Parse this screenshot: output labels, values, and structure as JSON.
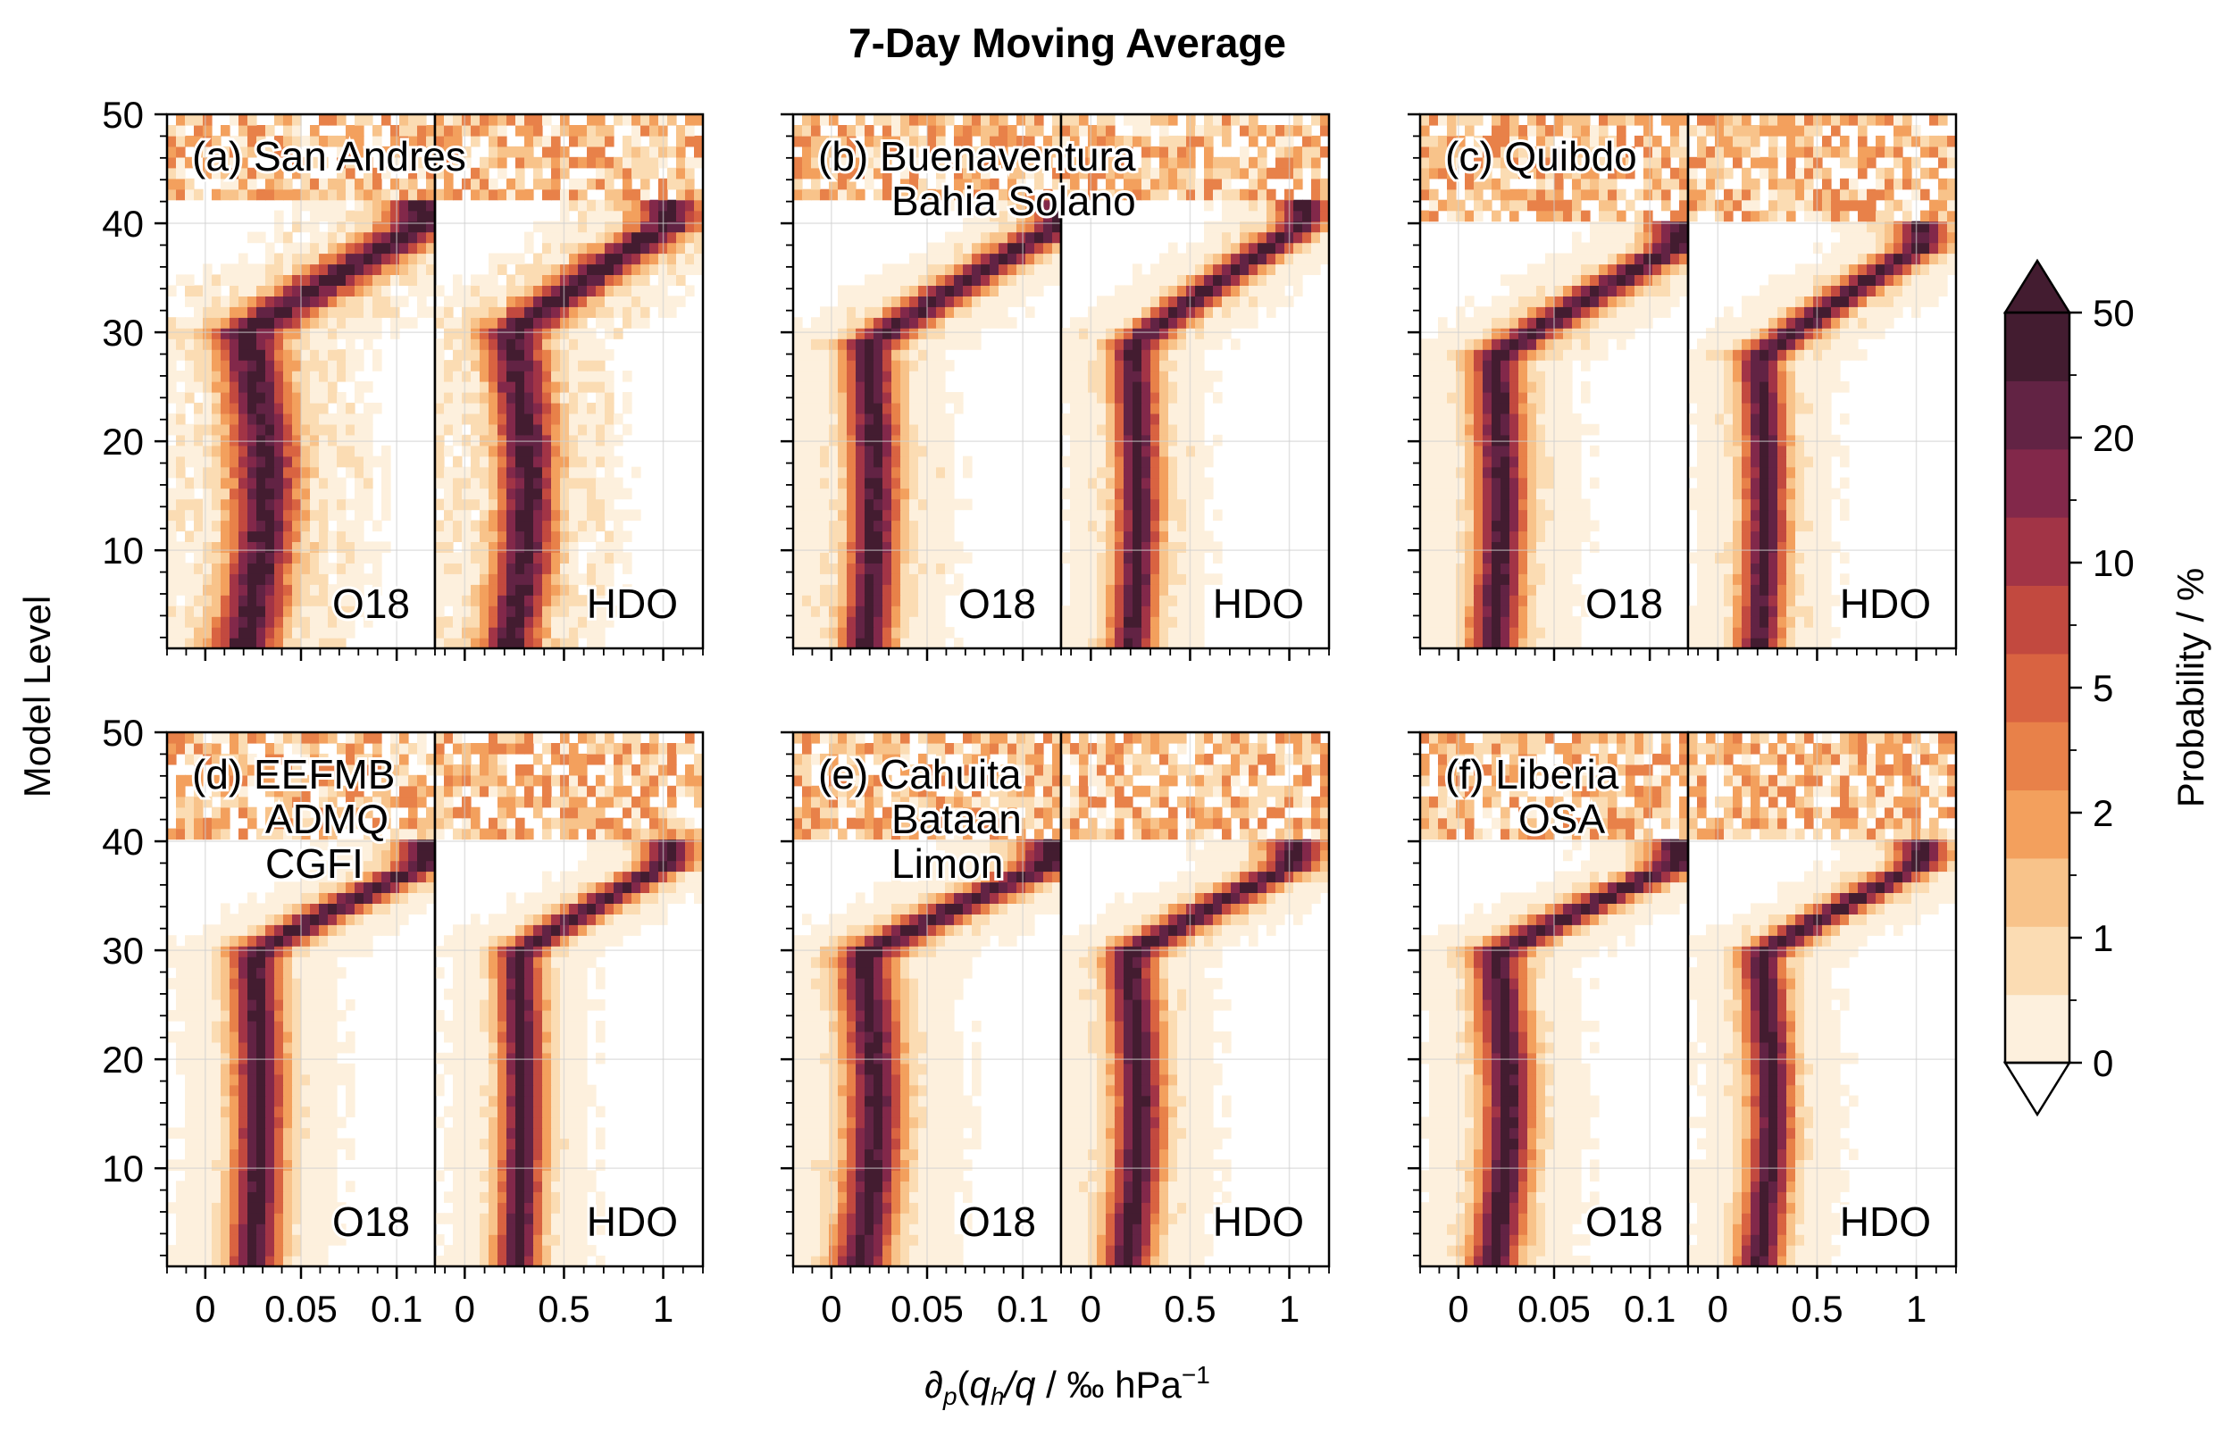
{
  "figure": {
    "title": "7-Day Moving Average",
    "ylabel": "Model Level",
    "xlabel_parts": {
      "d": "∂",
      "p": "p",
      "open": "(",
      "q": "q",
      "h": "h",
      "mid": "/q) / ‰ hPa",
      "exp": "−1"
    }
  },
  "colors": {
    "bins": [
      "#fdf0dd",
      "#fbdcb3",
      "#f8c38a",
      "#f3a05d",
      "#e88149",
      "#d96341",
      "#c2493f",
      "#a23446",
      "#82284a",
      "#622344",
      "#431c30"
    ],
    "outline": "#000000",
    "grid": "#cfcfcf"
  },
  "chart_data": {
    "type": "heatmap",
    "colorbar": {
      "label": "Probability / %",
      "tick_labels": [
        "0",
        "1",
        "2",
        "5",
        "10",
        "20",
        "50"
      ],
      "extend": "both"
    },
    "y_axis": {
      "label": "Model Level",
      "ylim": [
        1,
        50
      ],
      "ticks": [
        10,
        20,
        30,
        40,
        50
      ]
    },
    "x_axes": {
      "O18": {
        "label": "O18",
        "xlim": [
          -0.02,
          0.12
        ],
        "ticks": [
          0,
          0.05,
          0.1
        ],
        "tick_labels": [
          "0",
          "0.05",
          "0.1"
        ]
      },
      "HDO": {
        "label": "HDO",
        "xlim": [
          -0.15,
          1.2
        ],
        "ticks": [
          0,
          0.5,
          1
        ],
        "tick_labels": [
          "0",
          "0.5",
          "1"
        ]
      }
    },
    "panels": [
      {
        "id": "a",
        "label": "(a)",
        "stations": [
          "San Andres"
        ],
        "profile": {
          "peak_low": 0.02,
          "peak_mid": 0.03,
          "level_min": 29,
          "top_level": 40,
          "top_value": 0.115,
          "width": 0.012,
          "noise": 0.9
        }
      },
      {
        "id": "b",
        "label": "(b)",
        "stations": [
          "Buenaventura",
          "Bahia Solano"
        ],
        "profile": {
          "peak_low": 0.018,
          "peak_mid": 0.022,
          "level_min": 28,
          "top_level": 40,
          "top_value": 0.12,
          "width": 0.009,
          "noise": 0.5
        }
      },
      {
        "id": "c",
        "label": "(c)",
        "stations": [
          "Quibdo"
        ],
        "profile": {
          "peak_low": 0.018,
          "peak_mid": 0.022,
          "level_min": 27,
          "top_level": 38,
          "top_value": 0.115,
          "width": 0.009,
          "noise": 0.5
        }
      },
      {
        "id": "d",
        "label": "(d)",
        "stations": [
          "EEFMB",
          "ADMQ",
          "CGFI"
        ],
        "profile": {
          "peak_low": 0.025,
          "peak_mid": 0.028,
          "level_min": 29,
          "top_level": 38,
          "top_value": 0.115,
          "width": 0.009,
          "noise": 0.3
        }
      },
      {
        "id": "e",
        "label": "(e)",
        "stations": [
          "Cahuita",
          "Bataan",
          "Limon"
        ],
        "profile": {
          "peak_low": 0.015,
          "peak_mid": 0.022,
          "level_min": 29,
          "top_level": 38,
          "top_value": 0.115,
          "width": 0.01,
          "noise": 0.45
        }
      },
      {
        "id": "f",
        "label": "(f)",
        "stations": [
          "Liberia",
          "OSA"
        ],
        "profile": {
          "peak_low": 0.018,
          "peak_mid": 0.025,
          "level_min": 29,
          "top_level": 38,
          "top_value": 0.115,
          "width": 0.009,
          "noise": 0.4
        }
      }
    ],
    "grid": true
  }
}
